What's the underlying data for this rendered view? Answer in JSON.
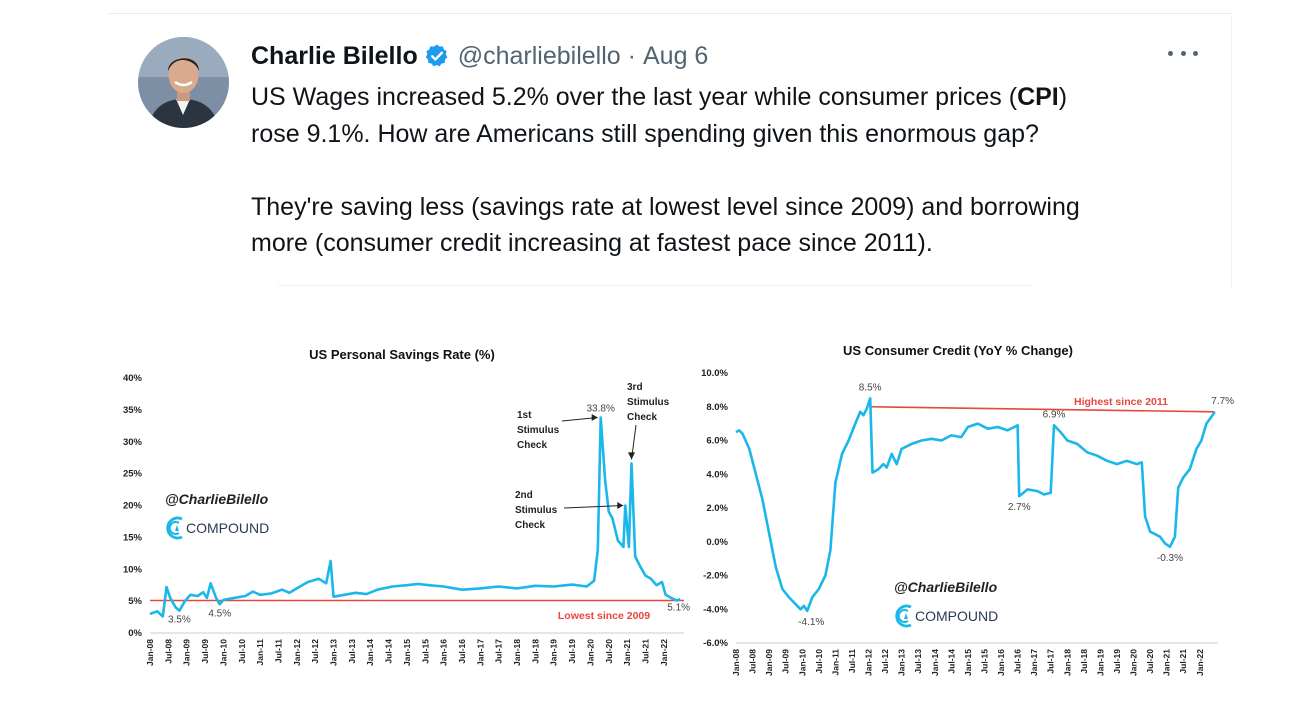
{
  "tweet": {
    "author": "Charlie Bilello",
    "handle": "@charliebilello",
    "separator": "·",
    "date": "Aug 6",
    "line1_a": "US Wages increased 5.2% over the last year while consumer prices (",
    "line1_b": "CPI",
    "line1_c": ")",
    "line2": "rose 9.1%. How are Americans still spending given this enormous gap?",
    "line3": "They're saving less (savings rate at lowest level since 2009) and borrowing",
    "line4": "more (consumer credit increasing at fastest pace since 2011)."
  },
  "icons": {
    "avatar": "avatar-photo",
    "verified": "verified-badge-icon",
    "more": "more-options-icon",
    "brand": "compound-logo-icon"
  },
  "colors": {
    "line": "#1ab7ea",
    "red": "#e8463f",
    "verified": "#1d9bf0",
    "grid_axis": "#cccccc"
  },
  "chart_data": [
    {
      "type": "line",
      "title": "US Personal Savings Rate (%)",
      "xlabel": "",
      "ylabel": "",
      "ylim": [
        0,
        40
      ],
      "yticks": [
        "0%",
        "5%",
        "10%",
        "15%",
        "20%",
        "25%",
        "30%",
        "35%",
        "40%"
      ],
      "x_tick_labels": [
        "Jan-08",
        "Jul-08",
        "Jan-09",
        "Jul-09",
        "Jan-10",
        "Jul-10",
        "Jan-11",
        "Jul-11",
        "Jan-12",
        "Jul-12",
        "Jan-13",
        "Jul-13",
        "Jan-14",
        "Jul-14",
        "Jan-15",
        "Jul-15",
        "Jan-16",
        "Jul-16",
        "Jan-17",
        "Jul-17",
        "Jan-18",
        "Jul-18",
        "Jan-19",
        "Jul-19",
        "Jan-20",
        "Jul-20",
        "Jan-21",
        "Jul-21",
        "Jan-22"
      ],
      "x_start": 2008.0,
      "x_end": 2022.55,
      "series": [
        {
          "name": "Personal Savings Rate",
          "points": [
            [
              2008.0,
              3.0
            ],
            [
              2008.2,
              3.4
            ],
            [
              2008.35,
              2.6
            ],
            [
              2008.45,
              7.2
            ],
            [
              2008.55,
              5.5
            ],
            [
              2008.7,
              4.0
            ],
            [
              2008.8,
              3.5
            ],
            [
              2008.95,
              5.0
            ],
            [
              2009.1,
              6.0
            ],
            [
              2009.3,
              5.8
            ],
            [
              2009.45,
              6.4
            ],
            [
              2009.55,
              5.5
            ],
            [
              2009.65,
              7.8
            ],
            [
              2009.8,
              5.5
            ],
            [
              2009.9,
              4.5
            ],
            [
              2010.0,
              5.2
            ],
            [
              2010.3,
              5.5
            ],
            [
              2010.6,
              5.8
            ],
            [
              2010.8,
              6.5
            ],
            [
              2011.0,
              6.0
            ],
            [
              2011.3,
              6.2
            ],
            [
              2011.6,
              6.8
            ],
            [
              2011.8,
              6.3
            ],
            [
              2012.0,
              7.0
            ],
            [
              2012.3,
              8.0
            ],
            [
              2012.6,
              8.5
            ],
            [
              2012.8,
              7.8
            ],
            [
              2012.92,
              11.3
            ],
            [
              2013.0,
              5.7
            ],
            [
              2013.3,
              6.0
            ],
            [
              2013.6,
              6.3
            ],
            [
              2013.9,
              6.1
            ],
            [
              2014.2,
              6.8
            ],
            [
              2014.6,
              7.3
            ],
            [
              2015.0,
              7.5
            ],
            [
              2015.3,
              7.7
            ],
            [
              2015.6,
              7.5
            ],
            [
              2016.0,
              7.3
            ],
            [
              2016.5,
              6.8
            ],
            [
              2017.0,
              7.0
            ],
            [
              2017.5,
              7.3
            ],
            [
              2018.0,
              7.0
            ],
            [
              2018.5,
              7.4
            ],
            [
              2019.0,
              7.3
            ],
            [
              2019.5,
              7.6
            ],
            [
              2019.9,
              7.3
            ],
            [
              2020.1,
              8.2
            ],
            [
              2020.2,
              13.0
            ],
            [
              2020.28,
              33.8
            ],
            [
              2020.4,
              24.0
            ],
            [
              2020.5,
              19.0
            ],
            [
              2020.6,
              18.0
            ],
            [
              2020.75,
              14.5
            ],
            [
              2020.9,
              13.5
            ],
            [
              2020.95,
              20.0
            ],
            [
              2021.05,
              13.5
            ],
            [
              2021.12,
              26.6
            ],
            [
              2021.22,
              12.0
            ],
            [
              2021.35,
              10.5
            ],
            [
              2021.5,
              9.0
            ],
            [
              2021.65,
              8.5
            ],
            [
              2021.8,
              7.5
            ],
            [
              2021.95,
              8.0
            ],
            [
              2022.05,
              6.0
            ],
            [
              2022.2,
              5.5
            ],
            [
              2022.35,
              5.1
            ],
            [
              2022.45,
              5.3
            ]
          ]
        }
      ],
      "reference_line": {
        "value": 5.1,
        "label": "Lowest since 2009"
      },
      "data_labels": [
        {
          "x": 2008.8,
          "y": 3.5,
          "text": "3.5%"
        },
        {
          "x": 2009.9,
          "y": 4.5,
          "text": "4.5%"
        },
        {
          "x": 2020.28,
          "y": 33.8,
          "text": "33.8%"
        },
        {
          "x": 2022.35,
          "y": 5.1,
          "text": "5.1%"
        }
      ],
      "annotations": [
        {
          "lines": [
            "1st",
            "Stimulus",
            "Check"
          ],
          "x": 2020.28,
          "y": 33.8
        },
        {
          "lines": [
            "2nd",
            "Stimulus",
            "Check"
          ],
          "x": 2020.95,
          "y": 20.0
        },
        {
          "lines": [
            "3rd",
            "Stimulus",
            "Check"
          ],
          "x": 2021.12,
          "y": 26.6
        }
      ],
      "brand_handle": "@CharlieBilello",
      "brand_name": "COMPOUND"
    },
    {
      "type": "line",
      "title": "US Consumer Credit (YoY % Change)",
      "xlabel": "",
      "ylabel": "",
      "ylim": [
        -6,
        10
      ],
      "yticks": [
        "-6.0%",
        "-4.0%",
        "-2.0%",
        "0.0%",
        "2.0%",
        "4.0%",
        "6.0%",
        "8.0%",
        "10.0%"
      ],
      "x_tick_labels": [
        "Jan-08",
        "Jul-08",
        "Jan-09",
        "Jul-09",
        "Jan-10",
        "Jul-10",
        "Jan-11",
        "Jul-11",
        "Jan-12",
        "Jul-12",
        "Jan-13",
        "Jul-13",
        "Jan-14",
        "Jul-14",
        "Jan-15",
        "Jul-15",
        "Jan-16",
        "Jul-16",
        "Jan-17",
        "Jul-17",
        "Jan-18",
        "Jul-18",
        "Jan-19",
        "Jul-19",
        "Jan-20",
        "Jul-20",
        "Jan-21",
        "Jul-21",
        "Jan-22"
      ],
      "x_start": 2008.0,
      "x_end": 2022.55,
      "series": [
        {
          "name": "Consumer Credit YoY",
          "points": [
            [
              2008.0,
              6.5
            ],
            [
              2008.1,
              6.6
            ],
            [
              2008.2,
              6.4
            ],
            [
              2008.4,
              5.5
            ],
            [
              2008.6,
              4.0
            ],
            [
              2008.8,
              2.5
            ],
            [
              2009.0,
              0.5
            ],
            [
              2009.2,
              -1.5
            ],
            [
              2009.4,
              -2.8
            ],
            [
              2009.6,
              -3.3
            ],
            [
              2009.8,
              -3.7
            ],
            [
              2009.95,
              -4.0
            ],
            [
              2010.05,
              -3.8
            ],
            [
              2010.15,
              -4.1
            ],
            [
              2010.3,
              -3.3
            ],
            [
              2010.5,
              -2.8
            ],
            [
              2010.7,
              -2.0
            ],
            [
              2010.85,
              -0.5
            ],
            [
              2011.0,
              3.5
            ],
            [
              2011.2,
              5.2
            ],
            [
              2011.4,
              6.0
            ],
            [
              2011.6,
              7.0
            ],
            [
              2011.75,
              7.7
            ],
            [
              2011.85,
              7.5
            ],
            [
              2011.95,
              7.9
            ],
            [
              2012.05,
              8.5
            ],
            [
              2012.12,
              4.1
            ],
            [
              2012.3,
              4.3
            ],
            [
              2012.45,
              4.6
            ],
            [
              2012.55,
              4.4
            ],
            [
              2012.7,
              5.2
            ],
            [
              2012.85,
              4.6
            ],
            [
              2013.0,
              5.5
            ],
            [
              2013.3,
              5.8
            ],
            [
              2013.6,
              6.0
            ],
            [
              2013.9,
              6.1
            ],
            [
              2014.2,
              6.0
            ],
            [
              2014.5,
              6.3
            ],
            [
              2014.8,
              6.2
            ],
            [
              2015.0,
              6.8
            ],
            [
              2015.3,
              7.0
            ],
            [
              2015.6,
              6.7
            ],
            [
              2015.9,
              6.8
            ],
            [
              2016.2,
              6.6
            ],
            [
              2016.4,
              6.8
            ],
            [
              2016.5,
              6.9
            ],
            [
              2016.55,
              2.7
            ],
            [
              2016.8,
              3.1
            ],
            [
              2017.1,
              3.0
            ],
            [
              2017.3,
              2.8
            ],
            [
              2017.5,
              2.9
            ],
            [
              2017.6,
              6.9
            ],
            [
              2017.8,
              6.5
            ],
            [
              2018.0,
              6.0
            ],
            [
              2018.3,
              5.8
            ],
            [
              2018.6,
              5.3
            ],
            [
              2018.9,
              5.1
            ],
            [
              2019.2,
              4.8
            ],
            [
              2019.5,
              4.6
            ],
            [
              2019.8,
              4.8
            ],
            [
              2020.1,
              4.6
            ],
            [
              2020.25,
              4.7
            ],
            [
              2020.35,
              1.5
            ],
            [
              2020.5,
              0.6
            ],
            [
              2020.8,
              0.3
            ],
            [
              2020.95,
              -0.1
            ],
            [
              2021.1,
              -0.3
            ],
            [
              2021.25,
              0.3
            ],
            [
              2021.35,
              3.2
            ],
            [
              2021.5,
              3.8
            ],
            [
              2021.7,
              4.3
            ],
            [
              2021.9,
              5.5
            ],
            [
              2022.05,
              6.0
            ],
            [
              2022.2,
              7.0
            ],
            [
              2022.35,
              7.4
            ],
            [
              2022.45,
              7.7
            ]
          ]
        }
      ],
      "reference_line": {
        "from_x": 2012.05,
        "from_y": 8.0,
        "to_x": 2022.45,
        "to_y": 7.7,
        "label": "Highest since 2011"
      },
      "data_labels": [
        {
          "x": 2012.05,
          "y": 8.5,
          "text": "8.5%"
        },
        {
          "x": 2010.15,
          "y": -4.1,
          "text": "-4.1%"
        },
        {
          "x": 2016.55,
          "y": 2.7,
          "text": "2.7%"
        },
        {
          "x": 2017.6,
          "y": 6.9,
          "text": "6.9%"
        },
        {
          "x": 2021.1,
          "y": -0.3,
          "text": "-0.3%"
        },
        {
          "x": 2022.45,
          "y": 7.7,
          "text": "7.7%"
        }
      ],
      "brand_handle": "@CharlieBilello",
      "brand_name": "COMPOUND"
    }
  ]
}
